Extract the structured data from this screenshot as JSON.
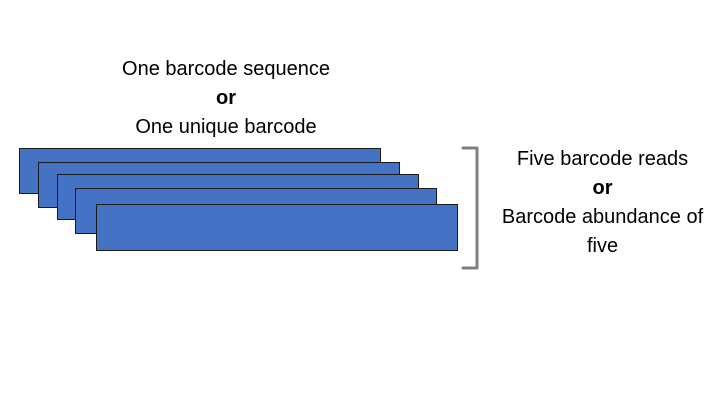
{
  "top_label": {
    "line1": "One barcode sequence",
    "line2": "or",
    "line3": "One unique barcode"
  },
  "right_label": {
    "line1": "Five barcode reads",
    "line2": "or",
    "line3": "Barcode abundance of",
    "line4": "five"
  },
  "colors": {
    "bar_fill": "#4472C4",
    "bar_border": "#1a1a1a",
    "bracket": "#808080"
  }
}
